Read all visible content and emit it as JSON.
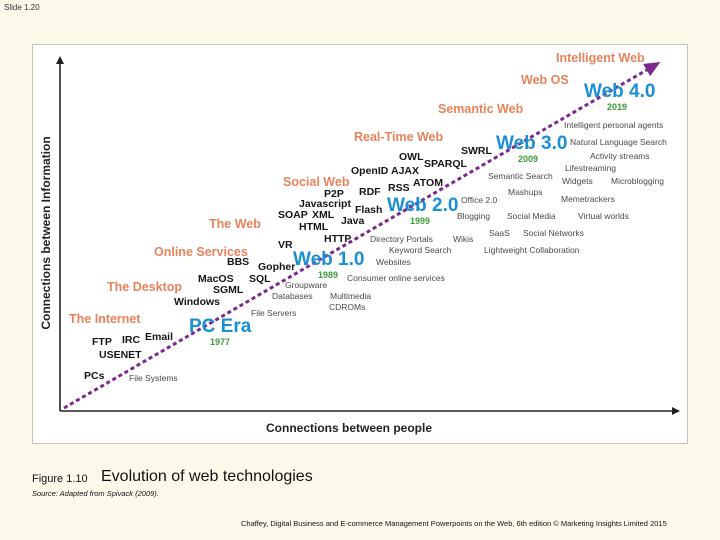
{
  "slide_label": "Slide 1.20",
  "diagram": {
    "y_axis_label": "Connections between Information",
    "x_axis_label": "Connections between people",
    "eras": [
      "Intelligent Web",
      "Web OS",
      "Semantic Web",
      "Real-Time Web",
      "Social Web",
      "The Web",
      "Online Services",
      "The Desktop",
      "The Internet"
    ],
    "generations": [
      {
        "label": "PC Era",
        "year": "1977"
      },
      {
        "label": "Web 1.0",
        "year": "1989"
      },
      {
        "label": "Web 2.0",
        "year": "1999"
      },
      {
        "label": "Web 3.0",
        "year": "2009"
      },
      {
        "label": "Web 4.0",
        "year": "2019"
      }
    ],
    "technologies": [
      "SWRL",
      "OWL",
      "SPARQL",
      "OpenID",
      "AJAX",
      "RSS",
      "ATOM",
      "RDF",
      "P2P",
      "Javascript",
      "Flash",
      "SOAP",
      "XML",
      "Java",
      "HTML",
      "HTTP",
      "VR",
      "BBS",
      "Gopher",
      "MacOS",
      "SQL",
      "SGML",
      "Windows",
      "Email",
      "FTP",
      "IRC",
      "USENET",
      "PCs"
    ],
    "applications": [
      "Intelligent personal agents",
      "Natural Language Search",
      "Activity streams",
      "Lifestreaming",
      "Semantic Search",
      "Widgets",
      "Microblogging",
      "Mashups",
      "Office 2.0",
      "Memetrackers",
      "Blogging",
      "Social Media",
      "Virtual worlds",
      "SaaS",
      "Social Networks",
      "Directory Portals",
      "Wikis",
      "Keyword Search",
      "Lightweight Collaboration",
      "Websites",
      "Consumer online services",
      "Groupware",
      "Databases",
      "Multimedia",
      "CDROMs",
      "File Servers",
      "File Systems"
    ]
  },
  "caption": {
    "prefix": "Figure 1.10",
    "title": "Evolution of web technologies",
    "source": "Source: Adapted from Spivack (2009)."
  },
  "footer": "Chaffey, Digital Business and E-commerce Management Powerpoints on the Web, 6th edition © Marketing Insights Limited 2015",
  "colors": {
    "slide_background": "#fdf9ea",
    "era_label": "#e8825a",
    "generation_label": "#1a8fd4",
    "year_label": "#3a9a3a",
    "trend_arrow": "#7a2a8c",
    "axis": "#222222"
  }
}
